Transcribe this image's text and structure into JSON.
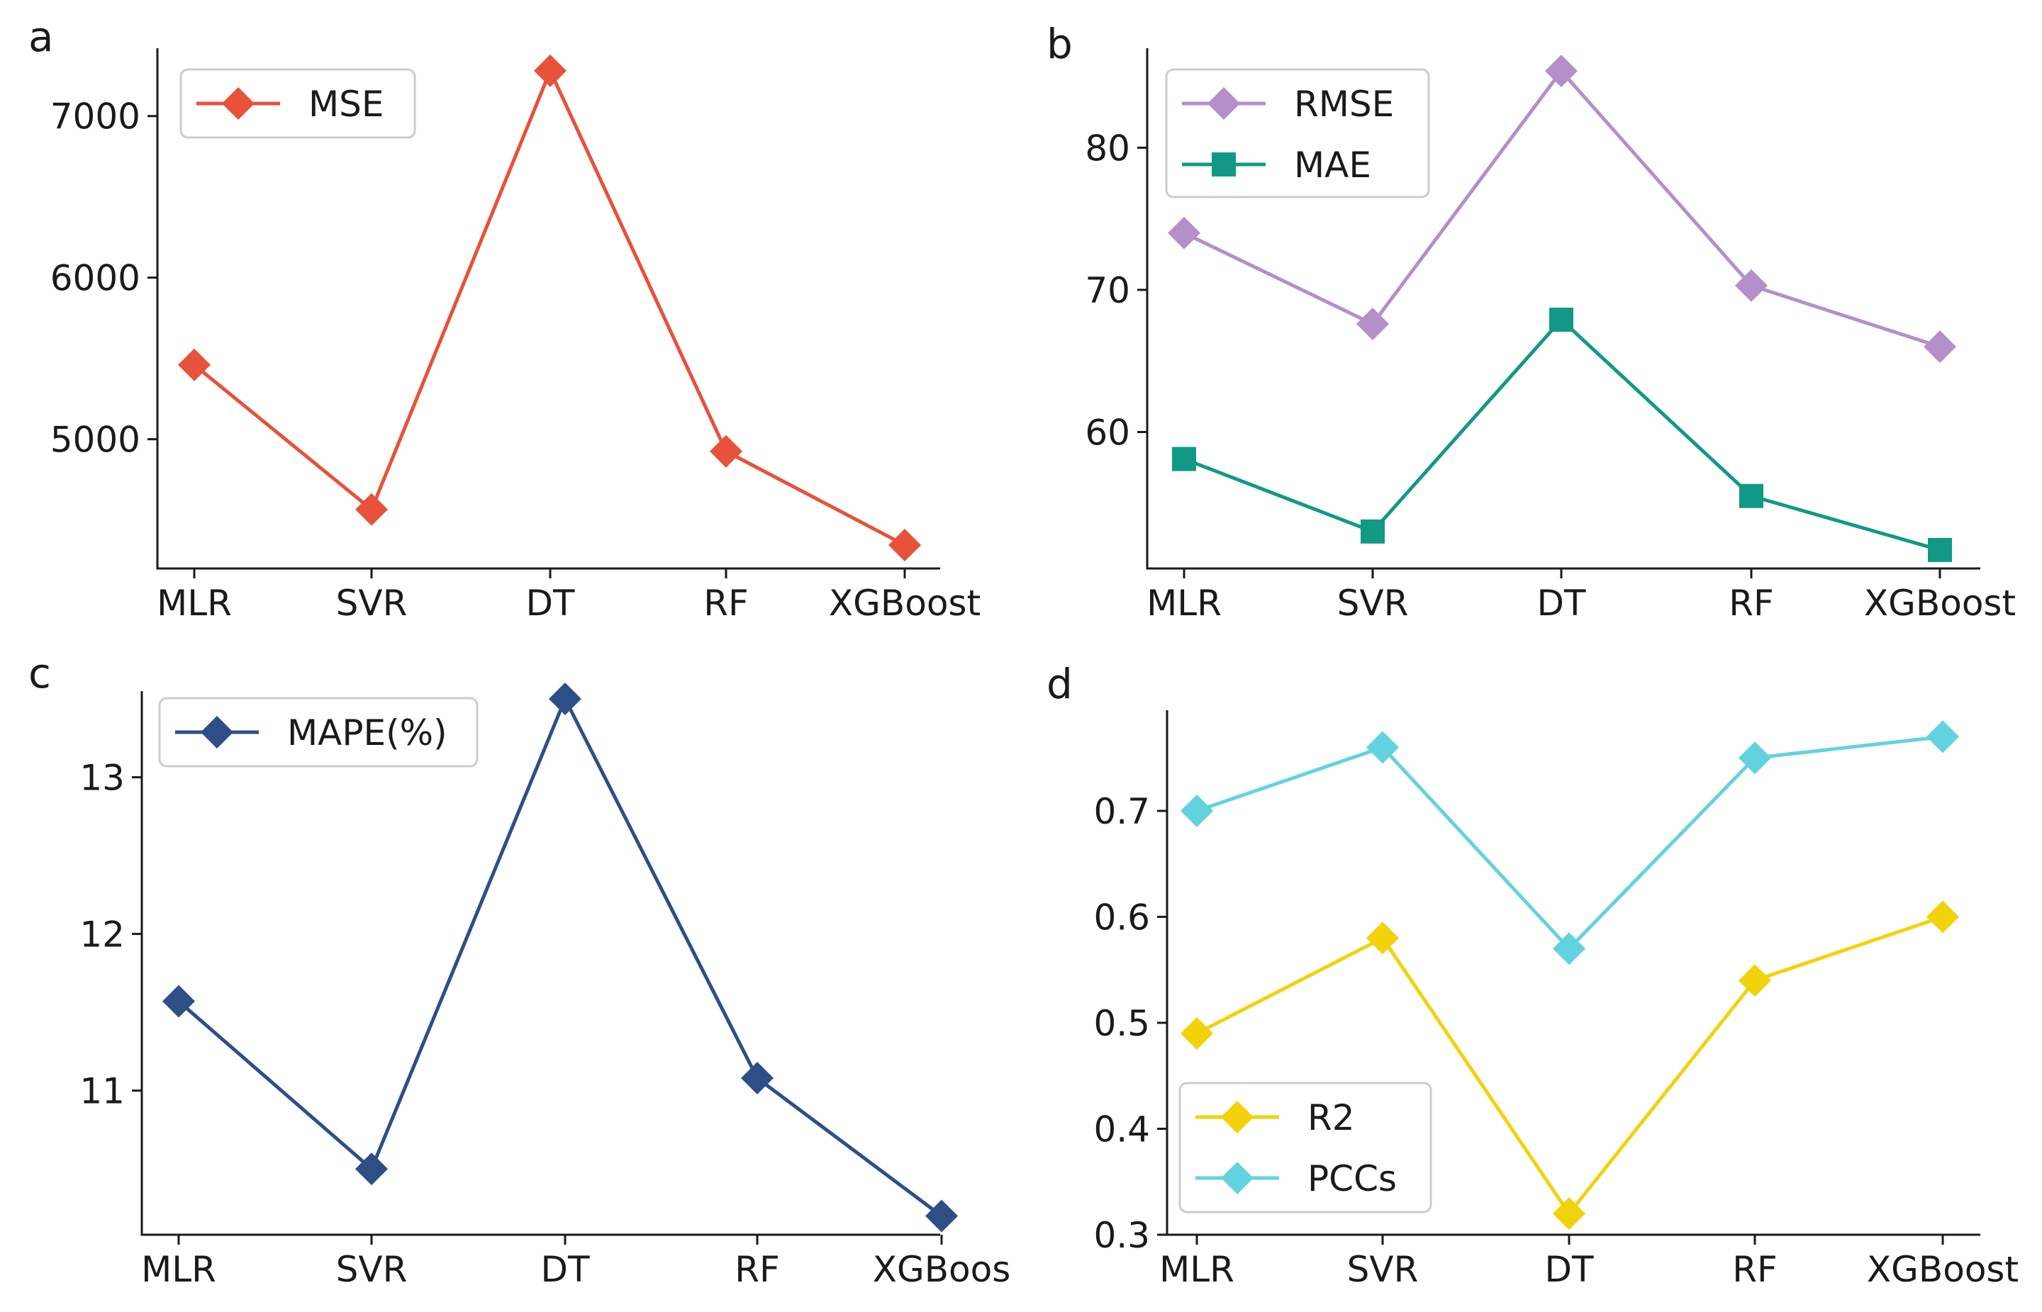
{
  "chart_data": [
    {
      "panel": "a",
      "type": "line",
      "categories": [
        "MLR",
        "SVR",
        "DT",
        "RF",
        "XGBoost"
      ],
      "yticks": [
        5000,
        6000,
        7000
      ],
      "ylim": [
        4200,
        7420
      ],
      "legend_position": "top-left",
      "series": [
        {
          "name": "MSE",
          "color": "#e8513a",
          "marker": "diamond",
          "values": [
            5460,
            4565,
            7280,
            4925,
            4345
          ]
        }
      ]
    },
    {
      "panel": "b",
      "type": "line",
      "categories": [
        "MLR",
        "SVR",
        "DT",
        "RF",
        "XGBoost"
      ],
      "yticks": [
        60,
        70,
        80
      ],
      "ylim": [
        50.4,
        87.0
      ],
      "legend_position": "top-left",
      "series": [
        {
          "name": "RMSE",
          "color": "#b48fc8",
          "marker": "diamond",
          "values": [
            74.0,
            67.6,
            85.4,
            70.3,
            66.0
          ]
        },
        {
          "name": "MAE",
          "color": "#129985",
          "marker": "square",
          "values": [
            58.1,
            53.0,
            67.9,
            55.5,
            51.7
          ]
        }
      ]
    },
    {
      "panel": "c",
      "type": "line",
      "categories": [
        "MLR",
        "SVR",
        "DT",
        "RF",
        "XGBoos"
      ],
      "yticks": [
        11,
        12,
        13
      ],
      "ylim": [
        10.08,
        13.55
      ],
      "legend_position": "top-left",
      "series": [
        {
          "name": "MAPE(%)",
          "color": "#2e4e86",
          "marker": "diamond",
          "values": [
            11.57,
            10.5,
            13.5,
            11.08,
            10.2
          ]
        }
      ]
    },
    {
      "panel": "d",
      "type": "line",
      "categories": [
        "MLR",
        "SVR",
        "DT",
        "RF",
        "XGBoost"
      ],
      "yticks": [
        0.3,
        0.4,
        0.5,
        0.6,
        0.7
      ],
      "ylim": [
        0.3,
        0.795
      ],
      "legend_position": "bottom-left",
      "series": [
        {
          "name": "R2",
          "color": "#f2d20a",
          "marker": "diamond",
          "values": [
            0.49,
            0.58,
            0.32,
            0.54,
            0.6
          ]
        },
        {
          "name": "PCCs",
          "color": "#62d3de",
          "marker": "diamond",
          "values": [
            0.7,
            0.76,
            0.57,
            0.75,
            0.77
          ]
        }
      ]
    }
  ]
}
